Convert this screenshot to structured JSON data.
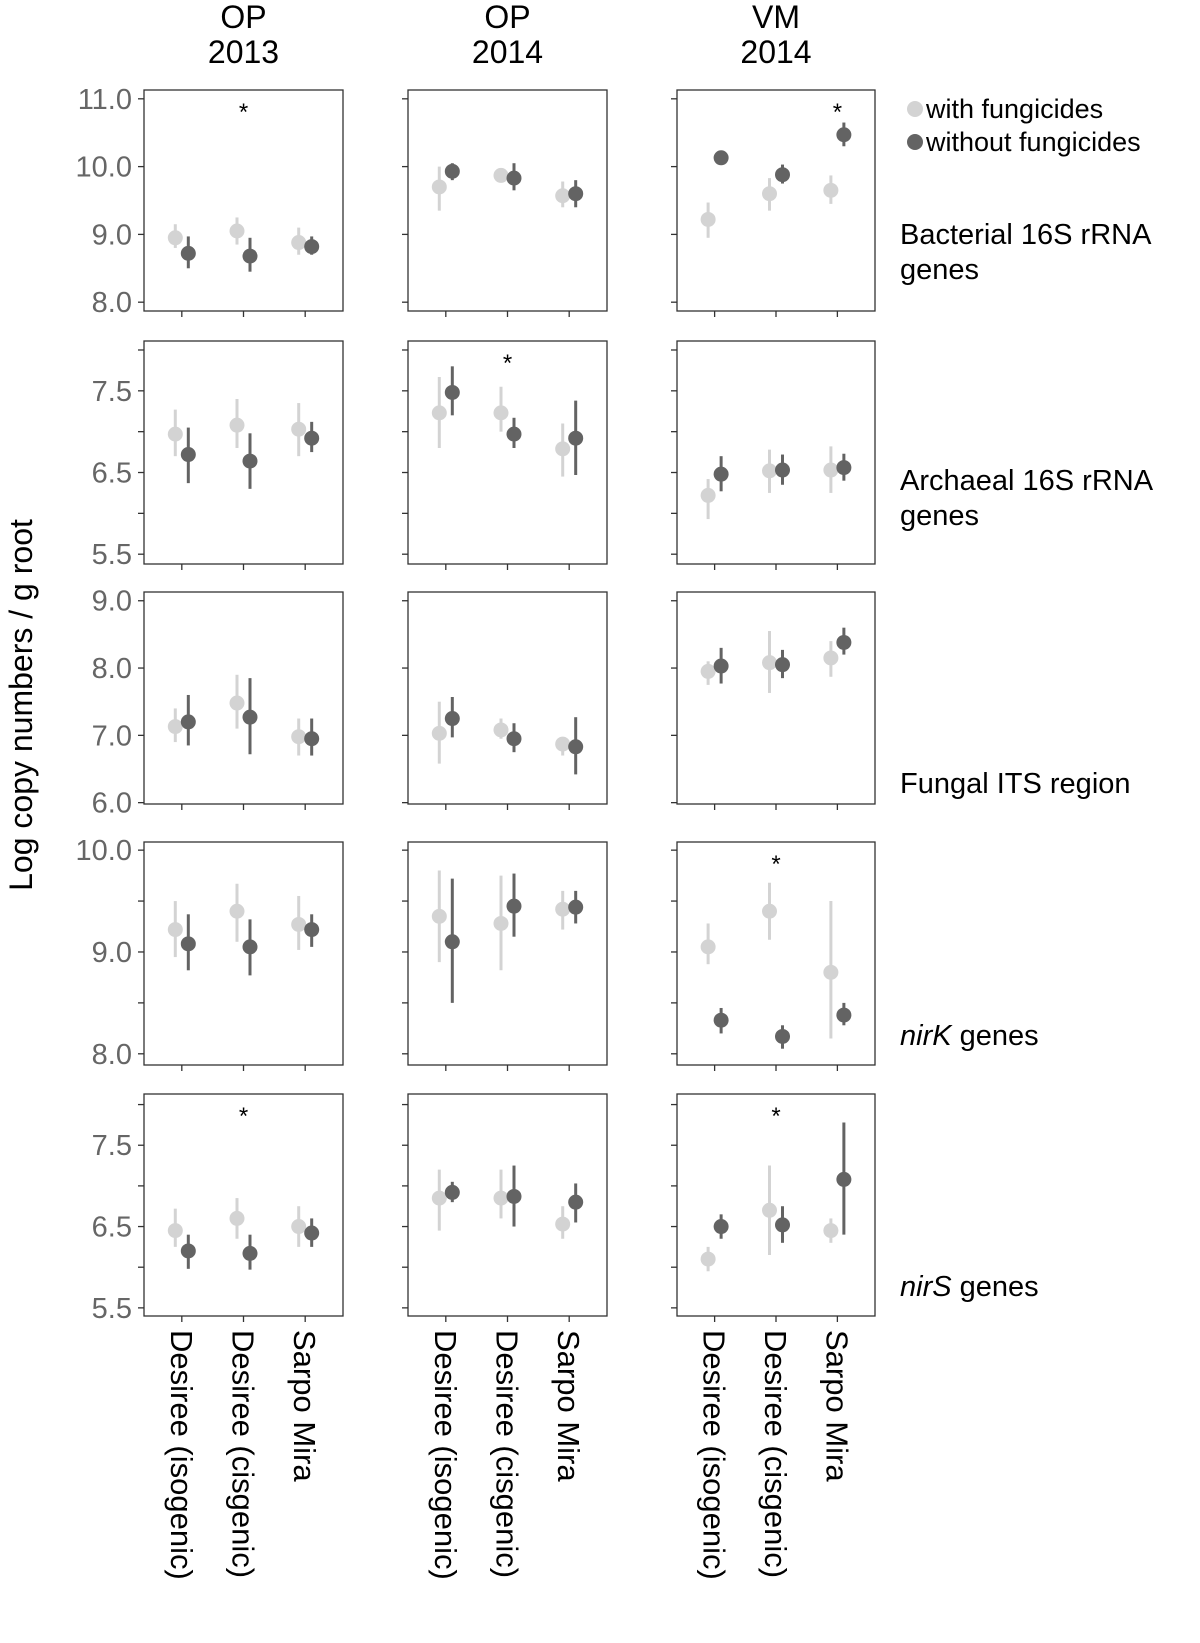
{
  "chart_data": {
    "type": "scatter",
    "subtype": "faceted point-range (mean with error bars)",
    "ylabel": "Log copy numbers / g root",
    "columns": [
      "OP\n2013",
      "OP\n2014",
      "VM\n2014"
    ],
    "categories": [
      "Desiree (isogenic)",
      "Desiree (cisgenic)",
      "Sarpo Mira"
    ],
    "legend": {
      "placement": "top-right",
      "entries": [
        {
          "name": "with fungicides",
          "color": "#d3d3d3"
        },
        {
          "name": "without fungicides",
          "color": "#636363"
        }
      ]
    },
    "grid": false,
    "rows": [
      {
        "label": "Bacterial 16S rRNA genes",
        "italic": "",
        "ylim": [
          7.87,
          11.13
        ],
        "ticks": [
          8,
          9,
          10,
          11
        ],
        "tick_labels": [
          "8.0",
          "9.0",
          "10.0",
          "11.0"
        ],
        "panels": [
          {
            "with": [
              [
                8.95,
                8.8,
                9.15
              ],
              [
                9.05,
                8.85,
                9.25
              ],
              [
                8.88,
                8.7,
                9.1
              ]
            ],
            "without": [
              [
                8.72,
                8.5,
                8.97
              ],
              [
                8.68,
                8.45,
                8.95
              ],
              [
                8.82,
                8.7,
                8.97
              ]
            ],
            "star": 1
          },
          {
            "with": [
              [
                9.7,
                9.35,
                10.0
              ],
              [
                9.87,
                9.8,
                9.95
              ],
              [
                9.57,
                9.4,
                9.78
              ]
            ],
            "without": [
              [
                9.93,
                9.8,
                10.05
              ],
              [
                9.83,
                9.65,
                10.05
              ],
              [
                9.6,
                9.4,
                9.8
              ]
            ],
            "star": null
          },
          {
            "with": [
              [
                9.22,
                8.95,
                9.47
              ],
              [
                9.6,
                9.35,
                9.83
              ],
              [
                9.65,
                9.45,
                9.87
              ]
            ],
            "without": [
              [
                10.13,
                10.05,
                10.2
              ],
              [
                9.88,
                9.75,
                10.03
              ],
              [
                10.47,
                10.3,
                10.65
              ]
            ],
            "star": 2
          }
        ]
      },
      {
        "label": "Archaeal 16S rRNA genes",
        "italic": "",
        "ylim": [
          5.38,
          8.11
        ],
        "ticks": [
          5.5,
          6,
          6.5,
          7,
          7.5,
          8
        ],
        "tick_labels": [
          "5.5",
          "",
          "6.5",
          "",
          "7.5",
          ""
        ],
        "panels": [
          {
            "with": [
              [
                6.97,
                6.7,
                7.27
              ],
              [
                7.08,
                6.8,
                7.4
              ],
              [
                7.03,
                6.7,
                7.35
              ]
            ],
            "without": [
              [
                6.72,
                6.37,
                7.05
              ],
              [
                6.64,
                6.3,
                6.98
              ],
              [
                6.92,
                6.75,
                7.12
              ]
            ],
            "star": null
          },
          {
            "with": [
              [
                7.23,
                6.8,
                7.67
              ],
              [
                7.23,
                7.0,
                7.55
              ],
              [
                6.79,
                6.45,
                7.1
              ]
            ],
            "without": [
              [
                7.48,
                7.2,
                7.8
              ],
              [
                6.97,
                6.8,
                7.17
              ],
              [
                6.92,
                6.47,
                7.38
              ]
            ],
            "star": 1
          },
          {
            "with": [
              [
                6.22,
                5.93,
                6.42
              ],
              [
                6.52,
                6.25,
                6.78
              ],
              [
                6.53,
                6.25,
                6.82
              ]
            ],
            "without": [
              [
                6.48,
                6.27,
                6.7
              ],
              [
                6.53,
                6.35,
                6.72
              ],
              [
                6.56,
                6.4,
                6.73
              ]
            ],
            "star": null
          }
        ]
      },
      {
        "label": "Fungal ITS region",
        "italic": "",
        "ylim": [
          5.98,
          9.13
        ],
        "ticks": [
          6,
          7,
          8,
          9
        ],
        "tick_labels": [
          "6.0",
          "7.0",
          "8.0",
          "9.0"
        ],
        "panels": [
          {
            "with": [
              [
                7.13,
                6.9,
                7.4
              ],
              [
                7.48,
                7.1,
                7.9
              ],
              [
                6.98,
                6.7,
                7.25
              ]
            ],
            "without": [
              [
                7.2,
                6.85,
                7.6
              ],
              [
                7.27,
                6.72,
                7.85
              ],
              [
                6.95,
                6.7,
                7.25
              ]
            ],
            "star": null
          },
          {
            "with": [
              [
                7.03,
                6.58,
                7.5
              ],
              [
                7.08,
                6.95,
                7.25
              ],
              [
                6.87,
                6.7,
                6.95
              ]
            ],
            "without": [
              [
                7.25,
                6.97,
                7.57
              ],
              [
                6.95,
                6.75,
                7.18
              ],
              [
                6.83,
                6.42,
                7.27
              ]
            ],
            "star": null
          },
          {
            "with": [
              [
                7.95,
                7.75,
                8.1
              ],
              [
                8.08,
                7.63,
                8.55
              ],
              [
                8.15,
                7.87,
                8.4
              ]
            ],
            "without": [
              [
                8.03,
                7.77,
                8.3
              ],
              [
                8.05,
                7.85,
                8.27
              ],
              [
                8.38,
                8.2,
                8.6
              ]
            ],
            "star": null
          }
        ]
      },
      {
        "label": " genes",
        "italic": "nirK",
        "ylim": [
          7.89,
          10.08
        ],
        "ticks": [
          8,
          8.5,
          9,
          9.5,
          10
        ],
        "tick_labels": [
          "8.0",
          "",
          "9.0",
          "",
          "10.0"
        ],
        "panels": [
          {
            "with": [
              [
                9.22,
                8.95,
                9.5
              ],
              [
                9.4,
                9.1,
                9.67
              ],
              [
                9.27,
                9.02,
                9.55
              ]
            ],
            "without": [
              [
                9.08,
                8.82,
                9.37
              ],
              [
                9.05,
                8.77,
                9.32
              ],
              [
                9.22,
                9.05,
                9.37
              ]
            ],
            "star": null
          },
          {
            "with": [
              [
                9.35,
                8.9,
                9.8
              ],
              [
                9.28,
                8.82,
                9.75
              ],
              [
                9.42,
                9.22,
                9.6
              ]
            ],
            "without": [
              [
                9.1,
                8.5,
                9.72
              ],
              [
                9.45,
                9.15,
                9.77
              ],
              [
                9.44,
                9.28,
                9.6
              ]
            ],
            "star": null
          },
          {
            "with": [
              [
                9.05,
                8.88,
                9.28
              ],
              [
                9.4,
                9.12,
                9.68
              ],
              [
                8.8,
                8.15,
                9.5
              ]
            ],
            "without": [
              [
                8.33,
                8.2,
                8.45
              ],
              [
                8.17,
                8.05,
                8.28
              ],
              [
                8.38,
                8.28,
                8.5
              ]
            ],
            "star": 1
          }
        ]
      },
      {
        "label": " genes",
        "italic": "nirS",
        "ylim": [
          5.4,
          8.13
        ],
        "ticks": [
          5.5,
          6,
          6.5,
          7,
          7.5,
          8
        ],
        "tick_labels": [
          "5.5",
          "",
          "6.5",
          "",
          "7.5",
          ""
        ],
        "panels": [
          {
            "with": [
              [
                6.45,
                6.25,
                6.72
              ],
              [
                6.6,
                6.35,
                6.85
              ],
              [
                6.5,
                6.25,
                6.75
              ]
            ],
            "without": [
              [
                6.2,
                5.98,
                6.4
              ],
              [
                6.17,
                5.97,
                6.4
              ],
              [
                6.42,
                6.25,
                6.6
              ]
            ],
            "star": 1
          },
          {
            "with": [
              [
                6.85,
                6.45,
                7.2
              ],
              [
                6.85,
                6.6,
                7.2
              ],
              [
                6.53,
                6.35,
                6.75
              ]
            ],
            "without": [
              [
                6.92,
                6.8,
                7.05
              ],
              [
                6.87,
                6.5,
                7.25
              ],
              [
                6.8,
                6.55,
                7.03
              ]
            ],
            "star": null
          },
          {
            "with": [
              [
                6.1,
                5.95,
                6.25
              ],
              [
                6.7,
                6.15,
                7.25
              ],
              [
                6.45,
                6.3,
                6.6
              ]
            ],
            "without": [
              [
                6.5,
                6.35,
                6.65
              ],
              [
                6.52,
                6.3,
                6.75
              ],
              [
                7.08,
                6.4,
                7.78
              ]
            ],
            "star": 1
          }
        ]
      }
    ],
    "star_symbol": "*"
  }
}
